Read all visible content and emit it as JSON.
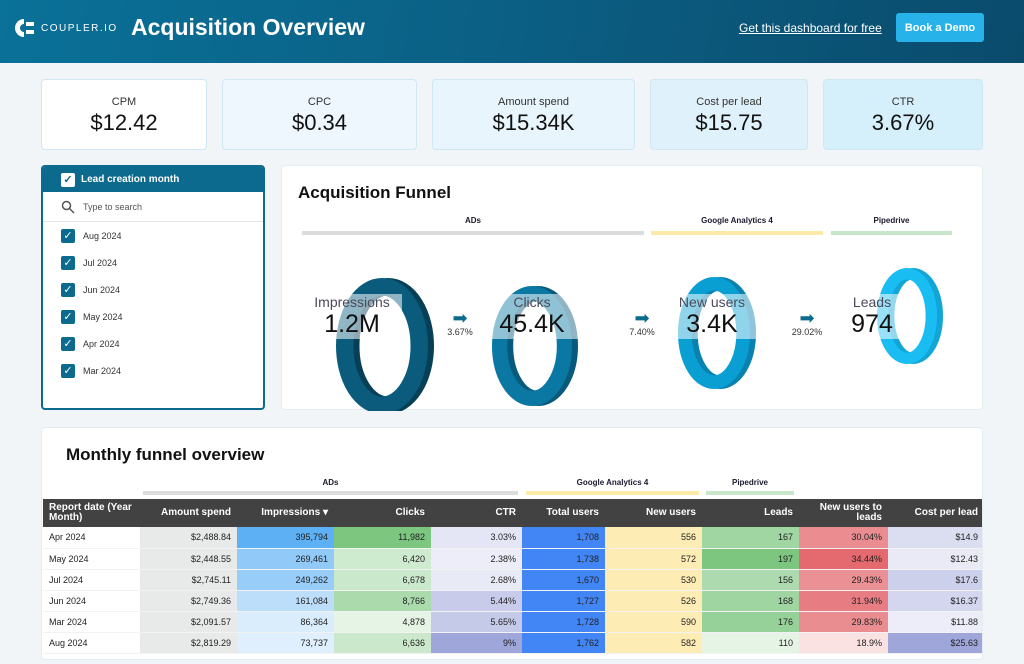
{
  "header": {
    "logo_text": "COUPLER.IO",
    "title": "Acquisition Overview",
    "link": "Get this dashboard for free",
    "demo_button": "Book a Demo"
  },
  "kpis": [
    {
      "label": "CPM",
      "value": "$12.42",
      "bg": "#ffffff"
    },
    {
      "label": "CPC",
      "value": "$0.34",
      "bg": "#eef7fd"
    },
    {
      "label": "Amount spend",
      "value": "$15.34K",
      "bg": "#e9f5fc"
    },
    {
      "label": "Cost per lead",
      "value": "$15.75",
      "bg": "#dff1fb"
    },
    {
      "label": "CTR",
      "value": "3.67%",
      "bg": "#d5effb"
    }
  ],
  "filter": {
    "title": "Lead creation month",
    "search_placeholder": "Type to search",
    "items": [
      "Aug 2024",
      "Jul 2024",
      "Jun 2024",
      "May 2024",
      "Apr 2024",
      "Mar 2024"
    ]
  },
  "funnel": {
    "title": "Acquisition Funnel",
    "groups": [
      {
        "label": "ADs",
        "color": "#dcdcdc"
      },
      {
        "label": "Google Analytics 4",
        "color": "#fde9a8"
      },
      {
        "label": "Pipedrive",
        "color": "#c8e6c9"
      }
    ],
    "stages": [
      {
        "label": "Impressions",
        "value": "1.2M",
        "color": "#0a5b7c",
        "dark": "#073f57"
      },
      {
        "label": "Clicks",
        "value": "45.4K",
        "color": "#0a78a3",
        "dark": "#075a7b"
      },
      {
        "label": "New users",
        "value": "3.4K",
        "color": "#0a9fd3",
        "dark": "#0a82b0"
      },
      {
        "label": "Leads",
        "value": "974",
        "color": "#19bdf2",
        "dark": "#12a6d8"
      }
    ],
    "conversions": [
      "3.67%",
      "7.40%",
      "29.02%"
    ]
  },
  "monthly": {
    "title": "Monthly funnel overview",
    "groups": [
      {
        "label": "ADs",
        "color": "#dcdcdc"
      },
      {
        "label": "Google Analytics 4",
        "color": "#fde9a8"
      },
      {
        "label": "Pipedrive",
        "color": "#c8e6c9"
      }
    ],
    "columns": [
      {
        "label": "Report date (Year Month)",
        "color": null
      },
      {
        "label": "Amount spend",
        "color": "#e8eaea",
        "constant": true
      },
      {
        "label": "Impressions ▾",
        "color": "#5eb0f5"
      },
      {
        "label": "Clicks",
        "color": "#7cc67f"
      },
      {
        "label": "CTR",
        "color": "#9fa6da"
      },
      {
        "label": "Total users",
        "color": "#4285f4",
        "constant": true
      },
      {
        "label": "New users",
        "color": "#feecb5",
        "constant": true
      },
      {
        "label": "Leads",
        "color": "#7cc67f"
      },
      {
        "label": "New users to leads",
        "color": "#e46a6f"
      },
      {
        "label": "Cost per lead",
        "color": "#9fa6da"
      }
    ],
    "rows": [
      [
        "Apr 2024",
        "$2,488.84",
        "395,794",
        "11,982",
        "3.03%",
        "1,708",
        "556",
        "167",
        "30.04%",
        "$14.9"
      ],
      [
        "May 2024",
        "$2,448.55",
        "269,461",
        "6,420",
        "2.38%",
        "1,738",
        "572",
        "197",
        "34.44%",
        "$12.43"
      ],
      [
        "Jul 2024",
        "$2,745.11",
        "249,262",
        "6,678",
        "2.68%",
        "1,670",
        "530",
        "156",
        "29.43%",
        "$17.6"
      ],
      [
        "Jun 2024",
        "$2,749.36",
        "161,084",
        "8,766",
        "5.44%",
        "1,727",
        "526",
        "168",
        "31.94%",
        "$16.37"
      ],
      [
        "Mar 2024",
        "$2,091.57",
        "86,364",
        "4,878",
        "5.65%",
        "1,728",
        "590",
        "176",
        "29.83%",
        "$11.88"
      ],
      [
        "Aug 2024",
        "$2,819.29",
        "73,737",
        "6,636",
        "9%",
        "1,762",
        "582",
        "110",
        "18.9%",
        "$25.63"
      ]
    ]
  }
}
